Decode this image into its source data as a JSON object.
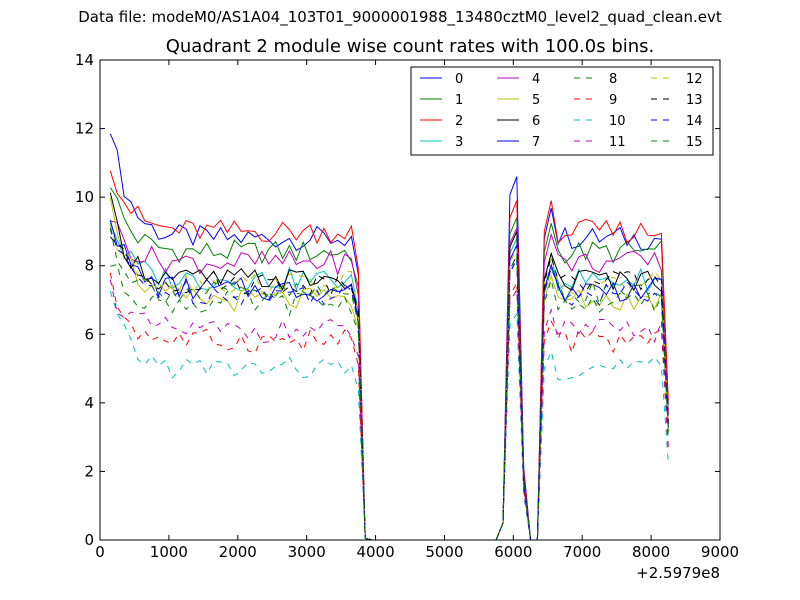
{
  "header": {
    "suptitle": "Data file: modeM0/AS1A04_103T01_9000001988_13480cztM0_level2_quad_clean.evt"
  },
  "chart_data": {
    "type": "line",
    "title": "Quadrant 2 module wise count rates with 100.0s bins.",
    "xlabel": "",
    "ylabel": "",
    "x_offset_label": "+2.5979e8",
    "xlim": [
      0,
      9000
    ],
    "ylim": [
      0,
      14
    ],
    "xticks": [
      0,
      1000,
      2000,
      3000,
      4000,
      5000,
      6000,
      7000,
      8000,
      9000
    ],
    "yticks": [
      0,
      2,
      4,
      6,
      8,
      10,
      12,
      14
    ],
    "grid": false,
    "legend_position": "top-right",
    "legend_columns": 4,
    "segments": [
      {
        "x_start": 150,
        "x_end": 3650,
        "step": 100
      },
      {
        "x_start": 3750,
        "x_end": 5750,
        "step": 100,
        "note": "gap"
      },
      {
        "x_start": 5850,
        "x_end": 6250,
        "step": 100
      },
      {
        "x_start": 6350,
        "x_end": 8250,
        "step": 100
      }
    ],
    "series": [
      {
        "name": "0",
        "color": "#0000ff",
        "dash": "solid",
        "level": 8.8,
        "start": 12.2,
        "peak": 10.6
      },
      {
        "name": "1",
        "color": "#008000",
        "dash": "solid",
        "level": 8.4,
        "start": 10.5,
        "peak": 9.4
      },
      {
        "name": "2",
        "color": "#ff0000",
        "dash": "solid",
        "level": 9.0,
        "start": 11.1,
        "peak": 9.9
      },
      {
        "name": "3",
        "color": "#00bfbf",
        "dash": "solid",
        "level": 7.6,
        "start": 9.4,
        "peak": 8.8
      },
      {
        "name": "4",
        "color": "#bf00bf",
        "dash": "solid",
        "level": 8.1,
        "start": 9.5,
        "peak": 9.1
      },
      {
        "name": "5",
        "color": "#bfbf00",
        "dash": "solid",
        "level": 7.0,
        "start": 10.3,
        "peak": 9.0
      },
      {
        "name": "6",
        "color": "#000000",
        "dash": "solid",
        "level": 7.6,
        "start": 9.8,
        "peak": 9.0
      },
      {
        "name": "7",
        "color": "#0000ff",
        "dash": "solid",
        "level": 7.3,
        "start": 9.6,
        "peak": 8.6
      },
      {
        "name": "8",
        "color": "#008000",
        "dash": "dashed",
        "level": 6.9,
        "start": 8.1,
        "peak": 8.2
      },
      {
        "name": "9",
        "color": "#ff0000",
        "dash": "dashed",
        "level": 5.8,
        "start": 7.5,
        "peak": 7.5
      },
      {
        "name": "10",
        "color": "#00bfbf",
        "dash": "dashed",
        "level": 5.0,
        "start": 7.1,
        "peak": 6.6
      },
      {
        "name": "11",
        "color": "#bf00bf",
        "dash": "dashed",
        "level": 6.1,
        "start": 7.4,
        "peak": 7.3
      },
      {
        "name": "12",
        "color": "#bfbf00",
        "dash": "dashed",
        "level": 7.5,
        "start": 9.2,
        "peak": 8.5
      },
      {
        "name": "13",
        "color": "#000000",
        "dash": "dashed",
        "level": 7.5,
        "start": 9.0,
        "peak": 8.3
      },
      {
        "name": "14",
        "color": "#0000ff",
        "dash": "dashed",
        "level": 7.2,
        "start": 9.1,
        "peak": 8.2
      },
      {
        "name": "15",
        "color": "#008000",
        "dash": "dashed",
        "level": 7.2,
        "start": 9.0,
        "peak": 8.3
      }
    ]
  }
}
